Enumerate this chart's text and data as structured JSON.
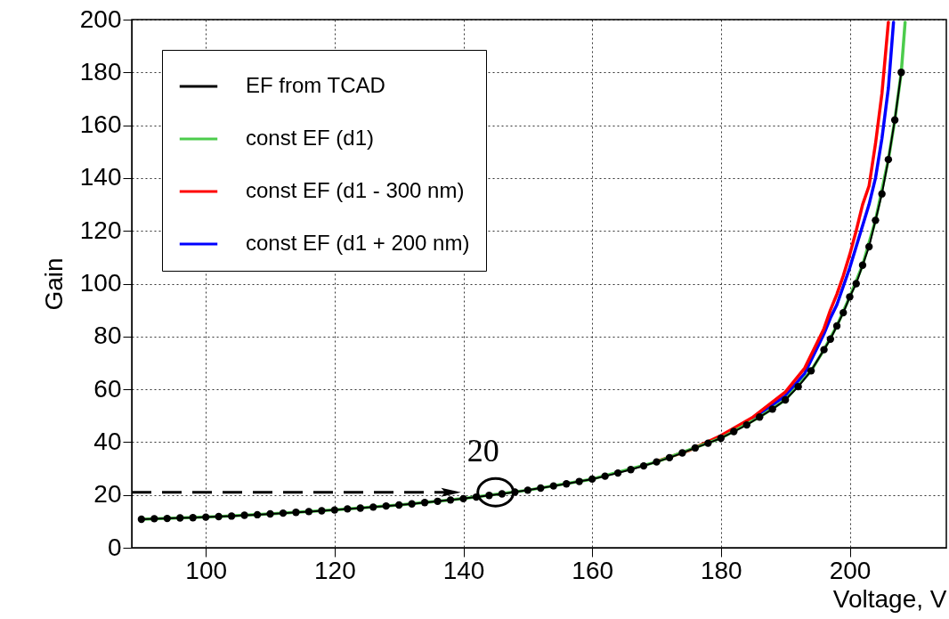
{
  "chart_data": {
    "type": "line",
    "xlabel": "Voltage, V",
    "ylabel": "Gain",
    "xlim": [
      88.5,
      215
    ],
    "ylim": [
      0,
      200
    ],
    "xticks": [
      100,
      120,
      140,
      160,
      180,
      200
    ],
    "yticks": [
      0,
      20,
      40,
      60,
      80,
      100,
      120,
      140,
      160,
      180,
      200
    ],
    "grid": true,
    "legend": "top left",
    "series": [
      {
        "name": "EF from TCAD",
        "color": "#000000",
        "marker": "circle",
        "x": [
          90,
          92,
          94,
          96,
          98,
          100,
          102,
          104,
          106,
          108,
          110,
          112,
          114,
          116,
          118,
          120,
          122,
          124,
          126,
          128,
          130,
          132,
          134,
          136,
          138,
          140,
          142,
          144,
          146,
          148,
          150,
          152,
          154,
          156,
          158,
          160,
          162,
          164,
          166,
          168,
          170,
          172,
          174,
          176,
          178,
          180,
          182,
          184,
          186,
          188,
          190,
          192,
          194,
          196,
          197,
          198,
          199,
          200,
          201,
          202,
          203,
          204,
          205,
          206,
          207,
          208
        ],
        "values": [
          10.8,
          11.0,
          11.1,
          11.3,
          11.4,
          11.6,
          11.8,
          12.0,
          12.3,
          12.5,
          12.8,
          13.1,
          13.4,
          13.7,
          14.0,
          14.3,
          14.7,
          15.0,
          15.4,
          15.8,
          16.2,
          16.6,
          17.1,
          17.6,
          18.1,
          18.6,
          19.2,
          19.8,
          20.4,
          21.1,
          21.8,
          22.6,
          23.4,
          24.2,
          25.1,
          26.0,
          27.1,
          28.3,
          29.6,
          31.0,
          32.5,
          34.1,
          35.9,
          37.8,
          39.6,
          41.5,
          44.0,
          46.5,
          49.5,
          52.5,
          56.0,
          61,
          67,
          75,
          79,
          84,
          89,
          95,
          100,
          107,
          114,
          124,
          134,
          147,
          162,
          180
        ]
      },
      {
        "name": "const EF (d1)",
        "color": "#4ccc4c",
        "x": [
          90,
          100,
          110,
          120,
          130,
          140,
          150,
          160,
          170,
          180,
          186,
          190,
          194,
          196,
          198,
          200,
          202,
          204,
          206,
          207,
          208,
          208.6
        ],
        "values": [
          10.8,
          11.6,
          12.8,
          14.3,
          16.2,
          18.6,
          21.8,
          26.0,
          32.5,
          41.5,
          49.5,
          56.0,
          67,
          75,
          84,
          95,
          107,
          124,
          147,
          162,
          180,
          199
        ]
      },
      {
        "name": "const EF (d1 - 300 nm)",
        "color": "#ff0000",
        "x": [
          170,
          175,
          180,
          185,
          190,
          193,
          195,
          196,
          197,
          198,
          199,
          200,
          201,
          202,
          203,
          204,
          205,
          206
        ],
        "values": [
          32.7,
          36.8,
          42.5,
          49.5,
          59,
          68,
          78,
          83,
          90,
          96,
          103,
          111,
          120,
          130,
          137,
          153,
          172,
          199
        ]
      },
      {
        "name": "const EF (d1 + 200 nm)",
        "color": "#0000ff",
        "x": [
          185,
          190,
          193,
          195,
          196,
          197,
          198,
          199,
          200,
          201,
          202,
          203,
          204,
          205,
          206,
          206.8
        ],
        "values": [
          49,
          57.5,
          66,
          76,
          81,
          87,
          92,
          99,
          106,
          114,
          122,
          130,
          140,
          155,
          174,
          199
        ]
      }
    ],
    "ref_lines": [
      {
        "axis": "y",
        "value": 21,
        "line_style": "dashed",
        "color": "#000000"
      }
    ],
    "annotations": [
      {
        "text": "20",
        "x": 145,
        "y": 21
      }
    ]
  }
}
